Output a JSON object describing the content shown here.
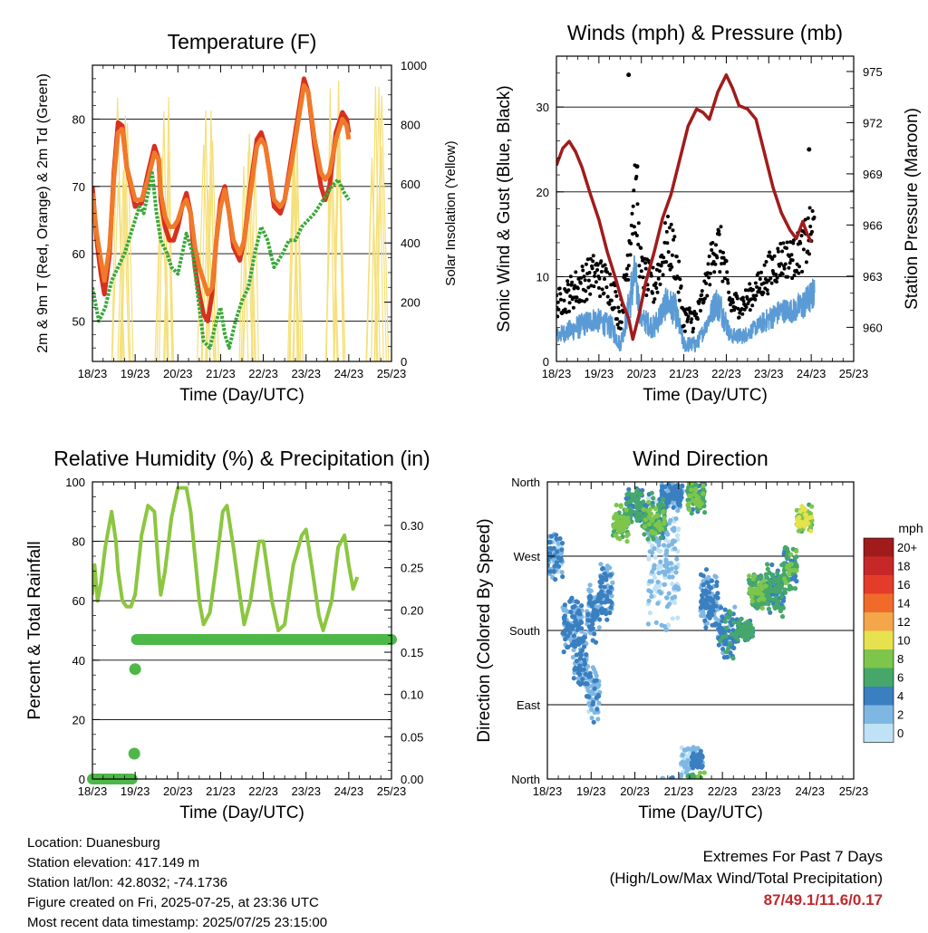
{
  "chart_data": [
    {
      "id": "temperature",
      "type": "line",
      "title": "Temperature (F)",
      "xlabel": "Time (Day/UTC)",
      "ylabel": "2m & 9m T (Red, Orange) & 2m Td (Green)",
      "ylabel_right": "Solar Insolation (Yellow)",
      "x_ticks": [
        "18/23",
        "19/23",
        "20/23",
        "21/23",
        "22/23",
        "23/23",
        "24/23",
        "25/23"
      ],
      "xlim": [
        0,
        7
      ],
      "ylim": [
        44,
        88
      ],
      "yticks": [
        50,
        60,
        70,
        80
      ],
      "ylim_right": [
        0,
        1000
      ],
      "yticks_right": [
        0,
        200,
        400,
        600,
        800,
        1000
      ],
      "grid": true,
      "series": [
        {
          "color": "#d7301f",
          "axis": "left",
          "points": [
            [
              0,
              70
            ],
            [
              0.1,
              62
            ],
            [
              0.2,
              57
            ],
            [
              0.28,
              54
            ],
            [
              0.4,
              60
            ],
            [
              0.5,
              72
            ],
            [
              0.6,
              79.5
            ],
            [
              0.7,
              79
            ],
            [
              0.8,
              73
            ],
            [
              0.9,
              70
            ],
            [
              1.0,
              67
            ],
            [
              1.15,
              67.5
            ],
            [
              1.3,
              72
            ],
            [
              1.45,
              76
            ],
            [
              1.55,
              74
            ],
            [
              1.6,
              68
            ],
            [
              1.7,
              64
            ],
            [
              1.8,
              62
            ],
            [
              1.9,
              62
            ],
            [
              2.0,
              64
            ],
            [
              2.1,
              67
            ],
            [
              2.2,
              69
            ],
            [
              2.3,
              66
            ],
            [
              2.4,
              58
            ],
            [
              2.5,
              54
            ],
            [
              2.6,
              51
            ],
            [
              2.7,
              50
            ],
            [
              2.8,
              54
            ],
            [
              2.9,
              62
            ],
            [
              3.0,
              68
            ],
            [
              3.1,
              70
            ],
            [
              3.2,
              66
            ],
            [
              3.3,
              61
            ],
            [
              3.45,
              59
            ],
            [
              3.55,
              62
            ],
            [
              3.7,
              70
            ],
            [
              3.85,
              77
            ],
            [
              3.95,
              78
            ],
            [
              4.05,
              76
            ],
            [
              4.15,
              72
            ],
            [
              4.25,
              67
            ],
            [
              4.4,
              66
            ],
            [
              4.5,
              68
            ],
            [
              4.65,
              74
            ],
            [
              4.8,
              80
            ],
            [
              4.95,
              86
            ],
            [
              5.05,
              84
            ],
            [
              5.2,
              76
            ],
            [
              5.35,
              70
            ],
            [
              5.45,
              68
            ],
            [
              5.55,
              70
            ],
            [
              5.7,
              78
            ],
            [
              5.85,
              81
            ],
            [
              5.95,
              80
            ],
            [
              6.0,
              78
            ]
          ]
        },
        {
          "color": "#f07a2a",
          "axis": "left",
          "points": [
            [
              0,
              69
            ],
            [
              0.1,
              63
            ],
            [
              0.2,
              59
            ],
            [
              0.28,
              56
            ],
            [
              0.4,
              61
            ],
            [
              0.5,
              71
            ],
            [
              0.6,
              78
            ],
            [
              0.7,
              78.5
            ],
            [
              0.8,
              73
            ],
            [
              0.9,
              70.5
            ],
            [
              1.0,
              68
            ],
            [
              1.15,
              68
            ],
            [
              1.3,
              71
            ],
            [
              1.45,
              75
            ],
            [
              1.55,
              74
            ],
            [
              1.6,
              69
            ],
            [
              1.7,
              65.5
            ],
            [
              1.8,
              64
            ],
            [
              1.9,
              64
            ],
            [
              2.0,
              65
            ],
            [
              2.1,
              67
            ],
            [
              2.2,
              68
            ],
            [
              2.3,
              66
            ],
            [
              2.4,
              61
            ],
            [
              2.5,
              58
            ],
            [
              2.6,
              56
            ],
            [
              2.7,
              54
            ],
            [
              2.8,
              55
            ],
            [
              2.9,
              62
            ],
            [
              3.0,
              67
            ],
            [
              3.1,
              69.5
            ],
            [
              3.2,
              66
            ],
            [
              3.3,
              62
            ],
            [
              3.45,
              60
            ],
            [
              3.55,
              62
            ],
            [
              3.7,
              69
            ],
            [
              3.85,
              76
            ],
            [
              3.95,
              77
            ],
            [
              4.05,
              76
            ],
            [
              4.15,
              72
            ],
            [
              4.25,
              68
            ],
            [
              4.4,
              67
            ],
            [
              4.5,
              68
            ],
            [
              4.65,
              73
            ],
            [
              4.8,
              79
            ],
            [
              4.95,
              85
            ],
            [
              5.05,
              84
            ],
            [
              5.2,
              77
            ],
            [
              5.35,
              72
            ],
            [
              5.45,
              71
            ],
            [
              5.55,
              72
            ],
            [
              5.7,
              77
            ],
            [
              5.85,
              80
            ],
            [
              5.95,
              79
            ],
            [
              6.0,
              77
            ]
          ]
        },
        {
          "color": "#3aa83a",
          "axis": "left",
          "points": [
            [
              0,
              55
            ],
            [
              0.15,
              50
            ],
            [
              0.3,
              52
            ],
            [
              0.45,
              56
            ],
            [
              0.6,
              58
            ],
            [
              0.75,
              60
            ],
            [
              0.9,
              63
            ],
            [
              1.0,
              65
            ],
            [
              1.1,
              67
            ],
            [
              1.2,
              66
            ],
            [
              1.3,
              69
            ],
            [
              1.4,
              72
            ],
            [
              1.5,
              66
            ],
            [
              1.6,
              62
            ],
            [
              1.75,
              60
            ],
            [
              1.85,
              58
            ],
            [
              2.0,
              57
            ],
            [
              2.2,
              63
            ],
            [
              2.35,
              60
            ],
            [
              2.5,
              52
            ],
            [
              2.6,
              47
            ],
            [
              2.75,
              46
            ],
            [
              2.9,
              50
            ],
            [
              3.0,
              52
            ],
            [
              3.1,
              48
            ],
            [
              3.2,
              46
            ],
            [
              3.35,
              50
            ],
            [
              3.5,
              53
            ],
            [
              3.65,
              55
            ],
            [
              3.8,
              60
            ],
            [
              3.95,
              64
            ],
            [
              4.1,
              62
            ],
            [
              4.25,
              58
            ],
            [
              4.45,
              60
            ],
            [
              4.6,
              62
            ],
            [
              4.75,
              62
            ],
            [
              4.9,
              64
            ],
            [
              5.05,
              65
            ],
            [
              5.2,
              66
            ],
            [
              5.4,
              68
            ],
            [
              5.6,
              70
            ],
            [
              5.75,
              71
            ],
            [
              5.9,
              69
            ],
            [
              6.0,
              68
            ]
          ]
        }
      ]
    },
    {
      "id": "winds",
      "type": "scatter",
      "title": "Winds (mph) & Pressure (mb)",
      "xlabel": "Time (Day/UTC)",
      "ylabel": "Sonic Wind & Gust (Blue, Black)",
      "ylabel_right": "Station Pressure (Maroon)",
      "x_ticks": [
        "18/23",
        "19/23",
        "20/23",
        "21/23",
        "22/23",
        "23/23",
        "24/23",
        "25/23"
      ],
      "xlim": [
        0,
        7
      ],
      "ylim": [
        0,
        36
      ],
      "yticks": [
        0,
        10,
        20,
        30
      ],
      "ylim_right": [
        958,
        975.9
      ],
      "yticks_right": [
        960,
        963,
        966,
        969,
        972,
        975
      ],
      "grid": true,
      "pressure": {
        "color": "#a01c1c",
        "points": [
          [
            0,
            969.5
          ],
          [
            0.15,
            970.5
          ],
          [
            0.3,
            970.9
          ],
          [
            0.45,
            970.3
          ],
          [
            0.6,
            969.4
          ],
          [
            0.8,
            967.8
          ],
          [
            1.0,
            966.3
          ],
          [
            1.2,
            964.4
          ],
          [
            1.4,
            962.8
          ],
          [
            1.55,
            961.5
          ],
          [
            1.7,
            960.5
          ],
          [
            1.8,
            959.3
          ],
          [
            1.95,
            960.8
          ],
          [
            2.1,
            962.6
          ],
          [
            2.3,
            964.4
          ],
          [
            2.5,
            966.4
          ],
          [
            2.7,
            967.8
          ],
          [
            2.9,
            969.8
          ],
          [
            3.1,
            971.8
          ],
          [
            3.3,
            972.8
          ],
          [
            3.45,
            972.6
          ],
          [
            3.6,
            972.2
          ],
          [
            3.8,
            973.8
          ],
          [
            4.0,
            974.8
          ],
          [
            4.15,
            974.0
          ],
          [
            4.3,
            973.0
          ],
          [
            4.5,
            972.8
          ],
          [
            4.7,
            972.2
          ],
          [
            4.9,
            970.2
          ],
          [
            5.1,
            968.2
          ],
          [
            5.3,
            966.7
          ],
          [
            5.5,
            965.7
          ],
          [
            5.65,
            965.2
          ],
          [
            5.8,
            966.2
          ],
          [
            5.9,
            965.5
          ],
          [
            6.0,
            965.0
          ]
        ]
      }
    },
    {
      "id": "humidity",
      "type": "line",
      "title": "Relative Humidity (%) & Precipitation (in)",
      "xlabel": "Time (Day/UTC)",
      "ylabel": "Percent & Total Rainfall",
      "x_ticks": [
        "18/23",
        "19/23",
        "20/23",
        "21/23",
        "22/23",
        "23/23",
        "24/23",
        "25/23"
      ],
      "xlim": [
        0,
        7
      ],
      "ylim": [
        0,
        100
      ],
      "yticks": [
        0,
        20,
        40,
        60,
        80,
        100
      ],
      "ylim_right": [
        0,
        0.3515
      ],
      "yticks_right": [
        "0.00",
        "0.05",
        "0.10",
        "0.15",
        "0.20",
        "0.25",
        "0.30"
      ],
      "grid": true,
      "rh": {
        "color": "#8cc640",
        "points": [
          [
            0,
            62
          ],
          [
            0.05,
            72
          ],
          [
            0.12,
            60
          ],
          [
            0.2,
            66
          ],
          [
            0.3,
            78
          ],
          [
            0.45,
            90
          ],
          [
            0.55,
            80
          ],
          [
            0.6,
            70
          ],
          [
            0.7,
            60
          ],
          [
            0.8,
            58
          ],
          [
            0.9,
            58
          ],
          [
            1.0,
            62
          ],
          [
            1.15,
            82
          ],
          [
            1.3,
            92
          ],
          [
            1.45,
            90
          ],
          [
            1.55,
            70
          ],
          [
            1.6,
            62
          ],
          [
            1.7,
            70
          ],
          [
            1.85,
            88
          ],
          [
            2.0,
            98
          ],
          [
            2.2,
            98
          ],
          [
            2.3,
            90
          ],
          [
            2.4,
            75
          ],
          [
            2.5,
            60
          ],
          [
            2.6,
            52
          ],
          [
            2.75,
            56
          ],
          [
            2.9,
            72
          ],
          [
            3.05,
            90
          ],
          [
            3.15,
            92
          ],
          [
            3.3,
            78
          ],
          [
            3.45,
            62
          ],
          [
            3.55,
            52
          ],
          [
            3.7,
            60
          ],
          [
            3.9,
            80
          ],
          [
            4.0,
            80
          ],
          [
            4.2,
            60
          ],
          [
            4.35,
            50
          ],
          [
            4.5,
            52
          ],
          [
            4.7,
            72
          ],
          [
            4.9,
            82
          ],
          [
            5.0,
            84
          ],
          [
            5.15,
            70
          ],
          [
            5.3,
            55
          ],
          [
            5.4,
            50
          ],
          [
            5.6,
            60
          ],
          [
            5.75,
            78
          ],
          [
            5.9,
            82
          ],
          [
            6.0,
            72
          ],
          [
            6.1,
            64
          ],
          [
            6.2,
            68
          ]
        ]
      },
      "rain": {
        "color": "#4db848",
        "points": [
          [
            0,
            0
          ],
          [
            0.94,
            0
          ],
          [
            0.98,
            0.03
          ],
          [
            1.0,
            0.13
          ],
          [
            1.03,
            0.165
          ],
          [
            7.0,
            0.165
          ]
        ]
      }
    },
    {
      "id": "direction",
      "type": "scatter",
      "title": "Wind Direction",
      "xlabel": "Time (Day/UTC)",
      "ylabel": "Direction (Colored By Speed)",
      "x_ticks": [
        "18/23",
        "19/23",
        "20/23",
        "21/23",
        "22/23",
        "23/23",
        "24/23",
        "25/23"
      ],
      "xlim": [
        0,
        7
      ],
      "ylim": [
        0,
        360
      ],
      "y_ticks": [
        "North",
        "East",
        "South",
        "West",
        "North"
      ],
      "yvalues": [
        0,
        90,
        180,
        270,
        360
      ],
      "grid": true,
      "legend": {
        "title": "mph",
        "labels": [
          "20+",
          "18",
          "16",
          "14",
          "12",
          "10",
          "8",
          "6",
          "4",
          "2",
          "0"
        ],
        "colors": [
          "#a01c1c",
          "#c62828",
          "#e33c2a",
          "#f06a2a",
          "#f4a64a",
          "#e5e24e",
          "#7ec64b",
          "#45a86a",
          "#3a7fc0",
          "#7fb7e3",
          "#bfe2f6"
        ]
      }
    }
  ],
  "station_info": {
    "location": "Location: Duanesburg",
    "elevation": "Station elevation: 417.149 m",
    "latlon": "Station lat/lon: 42.8032; -74.1736",
    "created": "Figure created on Fri, 2025-07-25, at 23:36 UTC",
    "recent": "Most recent data timestamp: 2025/07/25 23:15:00"
  },
  "extremes": {
    "title": "Extremes For Past 7 Days",
    "subtitle": "(High/Low/Max Wind/Total Precipitation)",
    "values": "87/49.1/11.6/0.17"
  }
}
